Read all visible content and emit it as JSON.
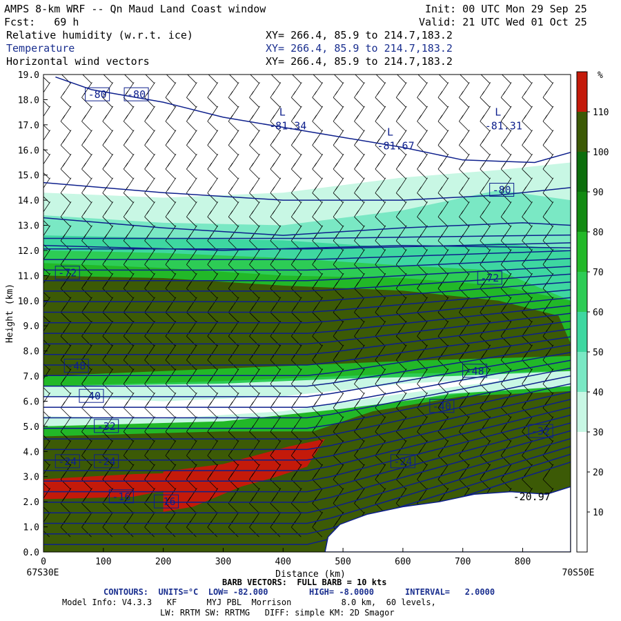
{
  "header": {
    "title": "AMPS 8-km WRF -- Qn Maud Land Coast window",
    "init": "Init: 00 UTC Mon 29 Sep 25",
    "fcst": "Fcst:   69 h",
    "valid": "Valid: 21 UTC Wed 01 Oct 25",
    "fields": [
      {
        "name": "Relative humidity (w.r.t. ice)",
        "xy": "XY= 266.4, 85.9 to 214.7,183.2"
      },
      {
        "name": "Temperature",
        "xy": "XY= 266.4, 85.9 to 214.7,183.2"
      },
      {
        "name": "Horizontal wind vectors",
        "xy": "XY= 266.4, 85.9 to 214.7,183.2"
      }
    ]
  },
  "colors": {
    "contour": "#0d1f8c",
    "terrain": "#ffffff",
    "rh_bins": [
      "#ffffff",
      "#ffffff",
      "#ffffff",
      "#c8f7e4",
      "#7ae8c4",
      "#3ed7a0",
      "#2dcc55",
      "#22b828",
      "#128a12",
      "#0c6e0c",
      "#3c5a06",
      "#c41a0a"
    ]
  },
  "chart_data": {
    "type": "heatmap",
    "title": "AMPS 8-km WRF -- Qn Maud Land Coast window",
    "xlabel": "Distance (km)",
    "ylabel": "Height (km)",
    "xlim": [
      0,
      880
    ],
    "ylim": [
      0,
      19
    ],
    "x_ticks": [
      0,
      100,
      200,
      300,
      400,
      500,
      600,
      700,
      800
    ],
    "y_ticks": [
      "0.0",
      "1.0",
      "2.0",
      "3.0",
      "4.0",
      "5.0",
      "6.0",
      "7.0",
      "8.0",
      "9.0",
      "10.0",
      "11.0",
      "12.0",
      "13.0",
      "14.0",
      "15.0",
      "16.0",
      "17.0",
      "18.0",
      "19.0"
    ],
    "left_endpoint": "67S30E",
    "right_endpoint": "70S50E",
    "colorbar": {
      "unit": "%",
      "ticks": [
        10,
        20,
        30,
        40,
        50,
        60,
        70,
        80,
        90,
        100,
        110
      ]
    },
    "temperature_contour_labels": [
      {
        "text": "-80",
        "x": 90,
        "y": 18.2
      },
      {
        "text": "-80",
        "x": 155,
        "y": 18.2
      },
      {
        "text": "-80",
        "x": 765,
        "y": 14.4
      },
      {
        "text": "-72",
        "x": 40,
        "y": 11.1
      },
      {
        "text": "-72",
        "x": 745,
        "y": 10.9
      },
      {
        "text": "-48",
        "x": 55,
        "y": 7.4
      },
      {
        "text": "-48",
        "x": 720,
        "y": 7.2
      },
      {
        "text": "-40",
        "x": 80,
        "y": 6.2
      },
      {
        "text": "-40",
        "x": 665,
        "y": 5.8
      },
      {
        "text": "-32",
        "x": 105,
        "y": 5.0
      },
      {
        "text": "-32",
        "x": 830,
        "y": 4.8
      },
      {
        "text": "-24",
        "x": 40,
        "y": 3.6
      },
      {
        "text": "-24",
        "x": 105,
        "y": 3.6
      },
      {
        "text": "-24",
        "x": 600,
        "y": 3.6
      },
      {
        "text": "-16",
        "x": 130,
        "y": 2.2
      },
      {
        "text": "-16",
        "x": 205,
        "y": 2.0
      }
    ],
    "lows": [
      {
        "text": "L",
        "value": "-81.34",
        "x": 385,
        "y": 17.2
      },
      {
        "text": "L",
        "value": "-81.67",
        "x": 565,
        "y": 16.4
      },
      {
        "text": "L",
        "value": "-81.31",
        "x": 745,
        "y": 17.2
      }
    ],
    "surface_label": {
      "text": "-20.97",
      "x": 830,
      "y": 2.2
    }
  },
  "footer": {
    "barb": "BARB VECTORS:  FULL BARB = 10 kts",
    "contours_label": "CONTOURS:  UNITS=°C  LOW= -82.000",
    "contours_high": "HIGH= -8.0000",
    "contours_interval": "INTERVAL=   2.0000",
    "model_info": "Model Info: V4.3.3   KF      MYJ PBL  Morrison          8.0 km,  60 levels,",
    "model_info2": "LW: RRTM SW: RRTMG   DIFF: simple KM: 2D Smagor"
  }
}
